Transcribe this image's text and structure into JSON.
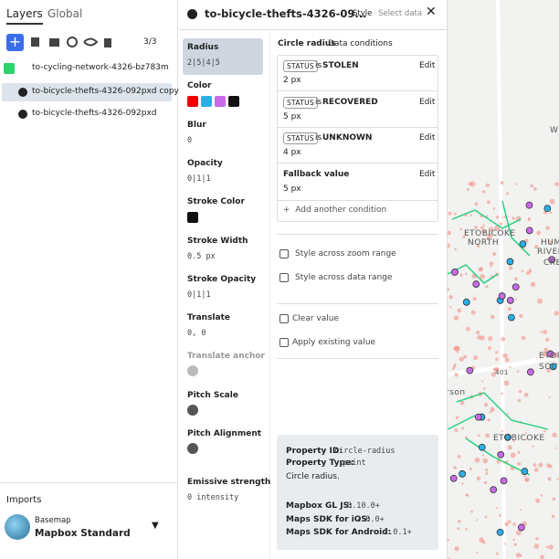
{
  "left_panel": {
    "tabs": [
      "Layers",
      "Global"
    ],
    "layer_count": "3/3",
    "layers": [
      "to-cycling-network-4326-bz783m",
      "to-bicycle-thefts-4326-092pxd copy",
      "to-bicycle-thefts-4326-092pxd"
    ],
    "imports": {
      "title": "Imports",
      "basemap_label": "Basemap",
      "basemap_name": "Mapbox Standard"
    }
  },
  "editor": {
    "layer_title": "to-bicycle-thefts-4326-09...",
    "tabs": [
      "Style",
      "Select data"
    ],
    "properties": [
      {
        "name": "Radius",
        "value": "2|5|4|5"
      },
      {
        "name": "Color",
        "value": null
      },
      {
        "name": "Blur",
        "value": "0"
      },
      {
        "name": "Opacity",
        "value": "0|1|1"
      },
      {
        "name": "Stroke Color",
        "value": null
      },
      {
        "name": "Stroke Width",
        "value": "0.5 px"
      },
      {
        "name": "Stroke Opacity",
        "value": "0|1|1"
      },
      {
        "name": "Translate",
        "value": "0, 0"
      },
      {
        "name": "Translate anchor",
        "value": null
      },
      {
        "name": "Pitch Scale",
        "value": null
      },
      {
        "name": "Pitch Alignment",
        "value": null
      },
      {
        "name": "Emissive strength",
        "value": "0 intensity"
      }
    ],
    "detail": {
      "title": "Circle radius",
      "mode": "Data conditions",
      "conditions": [
        {
          "field": "STATUS",
          "op": "is",
          "match": "STOLEN",
          "edit": "Edit",
          "value": "2 px"
        },
        {
          "field": "STATUS",
          "op": "is",
          "match": "RECOVERED",
          "edit": "Edit",
          "value": "5 px"
        },
        {
          "field": "STATUS",
          "op": "is",
          "match": "UNKNOWN",
          "edit": "Edit",
          "value": "4 px"
        }
      ],
      "fallback": {
        "label": "Fallback value",
        "edit": "Edit",
        "value": "5 px"
      },
      "add_condition": "Add another condition",
      "actions": [
        "Style across zoom range",
        "Style across data range",
        "Clear value",
        "Apply existing value"
      ],
      "info": {
        "property_id_label": "Property ID:",
        "property_id": "circle-radius",
        "property_type_label": "Property Type:",
        "property_type": "paint",
        "description": "Circle radius.",
        "sdks": [
          {
            "label": "Mapbox GL JS:",
            "version": "0.10.0+"
          },
          {
            "label": "Maps SDK for iOS:",
            "version": "2.0.0+"
          },
          {
            "label": "Maps SDK for Android:",
            "version": "2.0.1+"
          }
        ]
      }
    }
  },
  "map": {
    "labels": [
      "ETOBICOKE",
      "NORTH",
      "HUM",
      "RIVER-",
      "CRE",
      "ETOBI",
      "SOU",
      "401",
      "rson",
      "ETOBICOKE",
      "W"
    ]
  }
}
